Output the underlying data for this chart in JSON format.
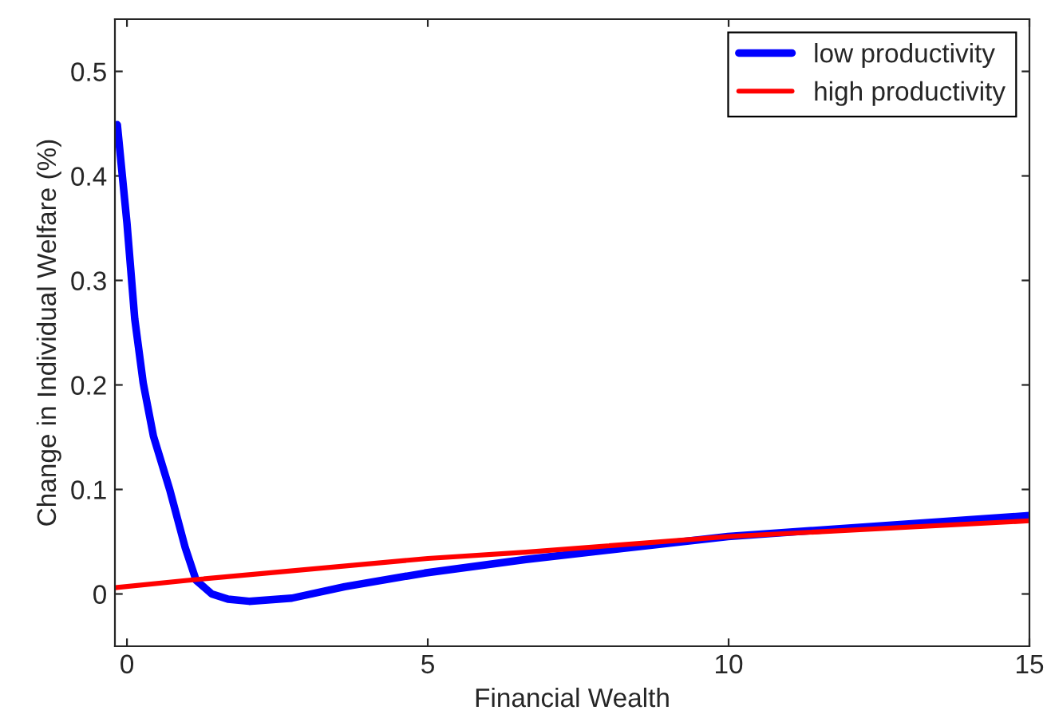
{
  "chart_data": {
    "type": "line",
    "xlabel": "Financial Wealth",
    "ylabel": "Change in Individual Welfare (%)",
    "xlim": [
      -0.2,
      15
    ],
    "ylim": [
      -0.05,
      0.55
    ],
    "xticks": [
      0,
      5,
      10,
      15
    ],
    "yticks": [
      0,
      0.1,
      0.2,
      0.3,
      0.4,
      0.5
    ],
    "grid": false,
    "legend": "top right",
    "series": [
      {
        "name": "low productivity",
        "color": "#0000ff",
        "x": [
          -0.16,
          0,
          0.13,
          0.27,
          0.44,
          0.71,
          0.97,
          1.15,
          1.41,
          1.68,
          2.03,
          2.74,
          3.62,
          4.95,
          6.63,
          9.99,
          12.47,
          15
        ],
        "values": [
          0.449,
          0.355,
          0.263,
          0.202,
          0.151,
          0.1,
          0.044,
          0.013,
          0.0,
          -0.005,
          -0.007,
          -0.004,
          0.007,
          0.02,
          0.033,
          0.055,
          0.065,
          0.075
        ]
      },
      {
        "name": "high productivity",
        "color": "#ff0000",
        "x": [
          -0.2,
          1,
          5,
          6.63,
          10,
          15
        ],
        "values": [
          0.006,
          0.013,
          0.034,
          0.04,
          0.055,
          0.07
        ]
      }
    ]
  }
}
